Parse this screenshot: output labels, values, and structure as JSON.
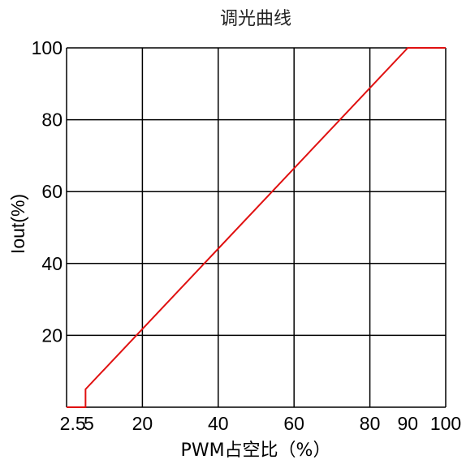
{
  "chart_data": {
    "type": "line",
    "title": "调光曲线",
    "xlabel": "PWM占空比（%）",
    "ylabel": "Iout(%)",
    "xlim": [
      0,
      100
    ],
    "ylim": [
      0,
      100
    ],
    "x_ticks": [
      2.5,
      5,
      20,
      40,
      60,
      80,
      90,
      100
    ],
    "x_tick_labels": [
      "2.5",
      "5",
      "20",
      "40",
      "60",
      "80",
      "90",
      "100"
    ],
    "x_gridlines": [
      20,
      40,
      60,
      80,
      100
    ],
    "y_ticks": [
      20,
      40,
      60,
      80,
      100
    ],
    "y_tick_labels": [
      "20",
      "40",
      "60",
      "80",
      "100"
    ],
    "grid": true,
    "line_color": "#e01010",
    "grid_color": "#000000",
    "series": [
      {
        "x": [
          0,
          5,
          5,
          90,
          100
        ],
        "y": [
          0,
          0,
          5,
          100,
          100
        ]
      }
    ]
  }
}
